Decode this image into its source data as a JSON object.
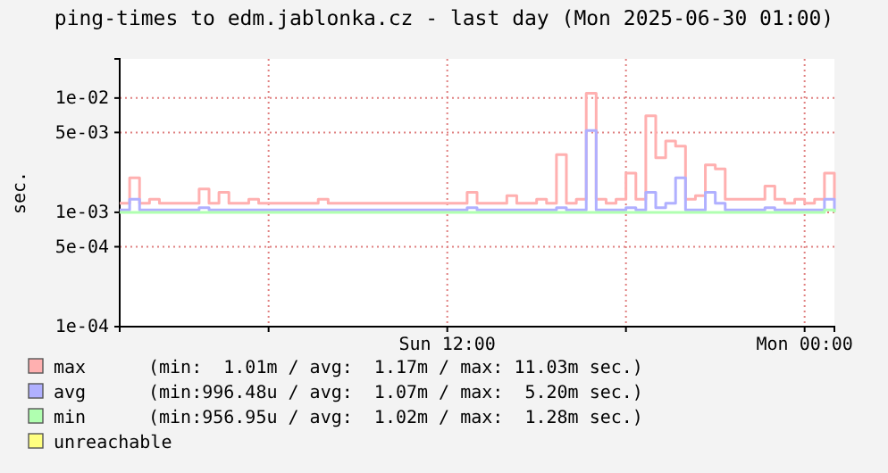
{
  "chart_data": {
    "type": "step",
    "title": "ping-times to edm.jablonka.cz - last day (Mon 2025-06-30 01:00)",
    "ylabel": "sec.",
    "x": [
      "2025-06-29T01:00",
      "2025-06-29T01:20",
      "2025-06-29T01:40",
      "2025-06-29T02:00",
      "2025-06-29T02:20",
      "2025-06-29T02:40",
      "2025-06-29T03:00",
      "2025-06-29T03:20",
      "2025-06-29T03:40",
      "2025-06-29T04:00",
      "2025-06-29T04:20",
      "2025-06-29T04:40",
      "2025-06-29T05:00",
      "2025-06-29T05:20",
      "2025-06-29T05:40",
      "2025-06-29T06:00",
      "2025-06-29T06:20",
      "2025-06-29T06:40",
      "2025-06-29T07:00",
      "2025-06-29T07:20",
      "2025-06-29T07:40",
      "2025-06-29T08:00",
      "2025-06-29T08:20",
      "2025-06-29T08:40",
      "2025-06-29T09:00",
      "2025-06-29T09:20",
      "2025-06-29T09:40",
      "2025-06-29T10:00",
      "2025-06-29T10:20",
      "2025-06-29T10:40",
      "2025-06-29T11:00",
      "2025-06-29T11:20",
      "2025-06-29T11:40",
      "2025-06-29T12:00",
      "2025-06-29T12:20",
      "2025-06-29T12:40",
      "2025-06-29T13:00",
      "2025-06-29T13:20",
      "2025-06-29T13:40",
      "2025-06-29T14:00",
      "2025-06-29T14:20",
      "2025-06-29T14:40",
      "2025-06-29T15:00",
      "2025-06-29T15:20",
      "2025-06-29T15:40",
      "2025-06-29T16:00",
      "2025-06-29T16:20",
      "2025-06-29T16:40",
      "2025-06-29T17:00",
      "2025-06-29T17:20",
      "2025-06-29T17:40",
      "2025-06-29T18:00",
      "2025-06-29T18:20",
      "2025-06-29T18:40",
      "2025-06-29T19:00",
      "2025-06-29T19:20",
      "2025-06-29T19:40",
      "2025-06-29T20:00",
      "2025-06-29T20:20",
      "2025-06-29T20:40",
      "2025-06-29T21:00",
      "2025-06-29T21:20",
      "2025-06-29T21:40",
      "2025-06-29T22:00",
      "2025-06-29T22:20",
      "2025-06-29T22:40",
      "2025-06-29T23:00",
      "2025-06-29T23:20",
      "2025-06-29T23:40",
      "2025-06-30T00:00",
      "2025-06-30T00:20",
      "2025-06-30T00:40",
      "2025-06-30T01:00"
    ],
    "series": [
      {
        "name": "max",
        "color": "#ffb0b0",
        "values": [
          0.0012,
          0.002,
          0.0012,
          0.0013,
          0.0012,
          0.0012,
          0.0012,
          0.0012,
          0.0016,
          0.0012,
          0.0015,
          0.0012,
          0.0012,
          0.0013,
          0.0012,
          0.0012,
          0.0012,
          0.0012,
          0.0012,
          0.0012,
          0.0013,
          0.0012,
          0.0012,
          0.0012,
          0.0012,
          0.0012,
          0.0012,
          0.0012,
          0.0012,
          0.0012,
          0.0012,
          0.0012,
          0.0012,
          0.0012,
          0.0012,
          0.0015,
          0.0012,
          0.0012,
          0.0012,
          0.0014,
          0.0012,
          0.0012,
          0.0013,
          0.0012,
          0.0032,
          0.0012,
          0.0013,
          0.011,
          0.0013,
          0.0012,
          0.0013,
          0.0022,
          0.0013,
          0.007,
          0.003,
          0.0042,
          0.0038,
          0.0013,
          0.0014,
          0.0026,
          0.0024,
          0.0013,
          0.0013,
          0.0013,
          0.0013,
          0.0017,
          0.0013,
          0.0012,
          0.0013,
          0.0012,
          0.0013,
          0.0022,
          0.0013
        ]
      },
      {
        "name": "avg",
        "color": "#b0b0ff",
        "values": [
          0.00105,
          0.0013,
          0.00105,
          0.00105,
          0.00105,
          0.00105,
          0.00105,
          0.00105,
          0.0011,
          0.00105,
          0.00105,
          0.00105,
          0.00105,
          0.00105,
          0.00105,
          0.00105,
          0.00105,
          0.00105,
          0.00105,
          0.00105,
          0.00105,
          0.00105,
          0.00105,
          0.00105,
          0.00105,
          0.00105,
          0.00105,
          0.00105,
          0.00105,
          0.00105,
          0.00105,
          0.00105,
          0.00105,
          0.00105,
          0.00105,
          0.0011,
          0.00105,
          0.00105,
          0.00105,
          0.00105,
          0.00105,
          0.00105,
          0.00105,
          0.00105,
          0.0011,
          0.00105,
          0.00105,
          0.0052,
          0.00105,
          0.00105,
          0.00105,
          0.0011,
          0.00105,
          0.0015,
          0.0011,
          0.0012,
          0.002,
          0.00105,
          0.00105,
          0.0015,
          0.0012,
          0.00105,
          0.00105,
          0.00105,
          0.00105,
          0.0011,
          0.00105,
          0.00105,
          0.00105,
          0.00105,
          0.00105,
          0.0013,
          0.00105
        ]
      },
      {
        "name": "min",
        "color": "#b0ffb0",
        "values": [
          0.001,
          0.001,
          0.001,
          0.001,
          0.001,
          0.001,
          0.001,
          0.001,
          0.001,
          0.001,
          0.001,
          0.001,
          0.001,
          0.001,
          0.001,
          0.001,
          0.001,
          0.001,
          0.001,
          0.001,
          0.001,
          0.001,
          0.001,
          0.001,
          0.001,
          0.001,
          0.001,
          0.001,
          0.001,
          0.001,
          0.001,
          0.001,
          0.001,
          0.001,
          0.001,
          0.001,
          0.001,
          0.001,
          0.001,
          0.001,
          0.001,
          0.001,
          0.001,
          0.001,
          0.001,
          0.001,
          0.001,
          0.001,
          0.001,
          0.001,
          0.001,
          0.001,
          0.001,
          0.001,
          0.001,
          0.001,
          0.001,
          0.001,
          0.001,
          0.001,
          0.001,
          0.001,
          0.001,
          0.001,
          0.001,
          0.001,
          0.001,
          0.001,
          0.001,
          0.001,
          0.001,
          0.00105,
          0.001
        ]
      },
      {
        "name": "unreachable",
        "color": "#ffff80",
        "values": [
          null,
          null,
          null,
          null,
          null,
          null,
          null,
          null,
          null,
          null,
          null,
          null,
          null,
          null,
          null,
          null,
          null,
          null,
          null,
          null,
          null,
          null,
          null,
          null,
          null,
          null,
          null,
          null,
          null,
          null,
          null,
          null,
          null,
          null,
          null,
          null,
          null,
          null,
          null,
          null,
          null,
          null,
          null,
          null,
          null,
          null,
          null,
          null,
          null,
          null,
          null,
          null,
          null,
          null,
          null,
          null,
          null,
          null,
          null,
          null,
          null,
          null,
          null,
          null,
          null,
          null,
          null,
          null,
          null,
          null,
          null,
          null,
          null
        ]
      }
    ],
    "annotations": [
      "(min:  1.01m / avg:  1.17m / max: 11.03m sec.)",
      "(min:996.48u / avg:  1.07m / max:  5.20m sec.)",
      "(min:956.95u / avg:  1.02m / max:  1.28m sec.)"
    ],
    "xlim": [
      "2025-06-29T01:00",
      "2025-06-30T01:00"
    ],
    "xticks": [
      {
        "value": "2025-06-29T06:00",
        "label": null
      },
      {
        "value": "2025-06-29T12:00",
        "label": "Sun 12:00"
      },
      {
        "value": "2025-06-29T18:00",
        "label": null
      },
      {
        "value": "2025-06-30T00:00",
        "label": "Mon 00:00"
      }
    ],
    "ylim": [
      0.0001,
      0.022
    ],
    "yticks": [
      {
        "value": 0.0001,
        "label": "1e-04"
      },
      {
        "value": 0.0005,
        "label": "5e-04"
      },
      {
        "value": 0.001,
        "label": "1e-03"
      },
      {
        "value": 0.005,
        "label": "5e-03"
      },
      {
        "value": 0.01,
        "label": "1e-02"
      }
    ],
    "log": "y",
    "grid": true,
    "legend": "bottom"
  }
}
